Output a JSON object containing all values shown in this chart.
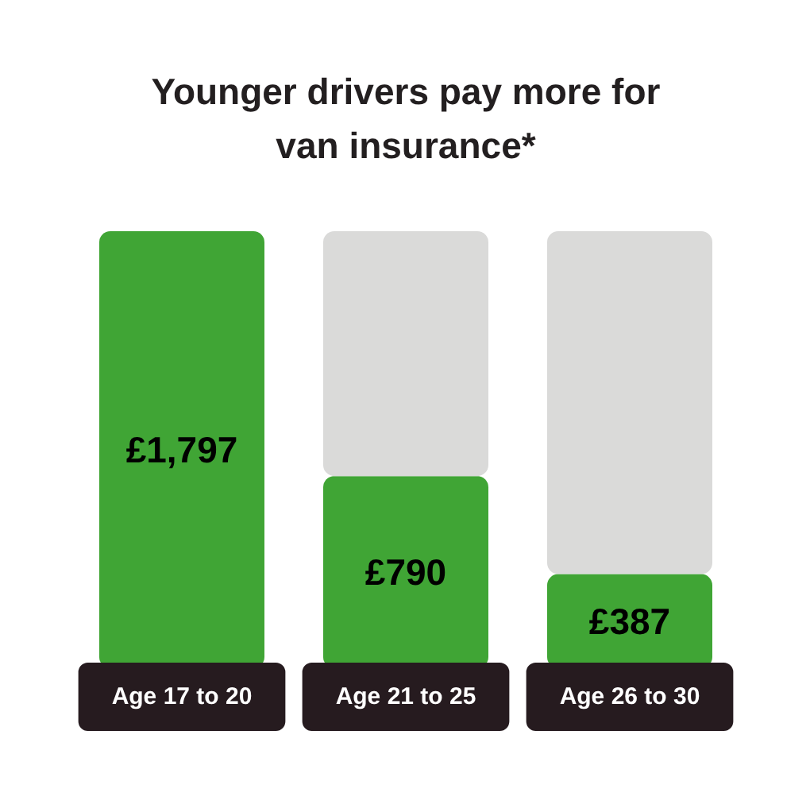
{
  "chart_data": {
    "type": "bar",
    "title": "Younger drivers pay more for van insurance*",
    "categories": [
      "Age 17 to 20",
      "Age 21 to 25",
      "Age 26 to 30"
    ],
    "stacked": true,
    "series": [
      {
        "color": "#40a535",
        "values": [
          1797,
          790,
          387
        ],
        "value_labels": [
          "£1,797",
          "£790",
          "£387"
        ]
      },
      {
        "color": "#dadad9",
        "values": [
          null,
          1007,
          1410
        ]
      }
    ]
  }
}
